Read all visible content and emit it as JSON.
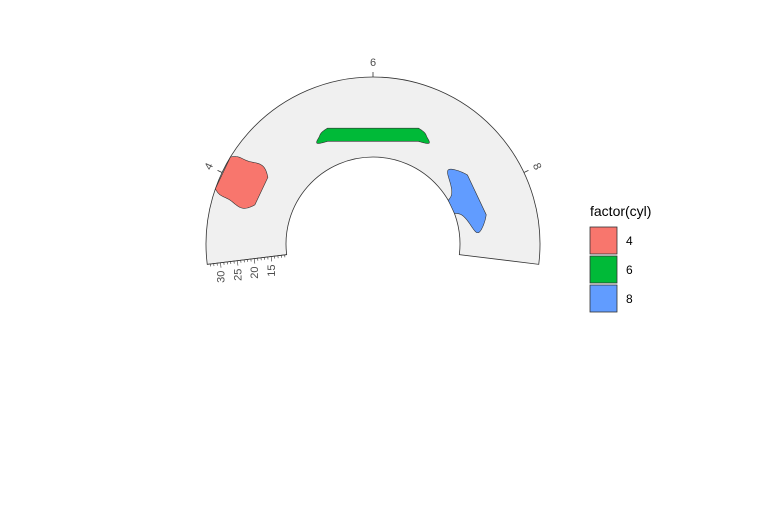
{
  "chart_data": {
    "type": "violin",
    "coord": "radial",
    "x_variable": "cyl",
    "y_variable": "mpg",
    "categories": [
      "4",
      "6",
      "8"
    ],
    "series": [
      {
        "name": "4",
        "color": "#F8766D",
        "values": [
          21.4,
          22.8,
          24.4,
          26.0,
          27.3,
          30.4,
          32.4,
          33.9
        ]
      },
      {
        "name": "6",
        "color": "#00BA38",
        "values": [
          17.8,
          18.1,
          19.2,
          19.7,
          21.0,
          21.4
        ]
      },
      {
        "name": "8",
        "color": "#619CFF",
        "values": [
          10.4,
          13.3,
          15.0,
          15.2,
          15.5,
          16.4,
          17.3,
          18.7,
          19.2
        ]
      }
    ],
    "r_ticks": [
      15,
      20,
      25,
      30
    ],
    "r_lim": [
      10.4,
      33.9
    ],
    "theta_start_deg": -97,
    "theta_span_deg": 194,
    "panel_background": "#f0f0f0",
    "legend": {
      "title": "factor(cyl)",
      "position": "right",
      "entries": [
        {
          "label": "4",
          "color": "#F8766D"
        },
        {
          "label": "6",
          "color": "#00BA38"
        },
        {
          "label": "8",
          "color": "#619CFF"
        }
      ]
    }
  }
}
